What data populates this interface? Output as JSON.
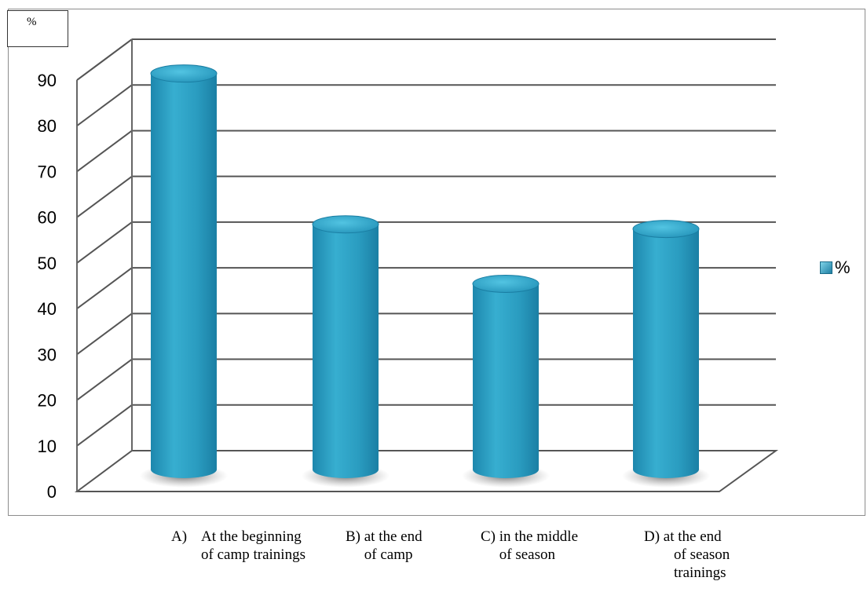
{
  "chart_data": {
    "type": "bar",
    "unit_label": "%",
    "categories": [
      "A)    At the beginning\n        of camp trainings",
      "B) at the end\n     of camp",
      "C) in the middle\n     of season",
      "D) at the end\n        of season\n        trainings"
    ],
    "series": [
      {
        "name": "%",
        "values": [
          88,
          55,
          42,
          54
        ],
        "color": "#2a9cc0"
      }
    ],
    "ylim": [
      0,
      90
    ],
    "yticks": [
      "0",
      "10",
      "20",
      "30",
      "40",
      "50",
      "60",
      "70",
      "80",
      "90"
    ],
    "legend_position": "right",
    "grid": true
  }
}
